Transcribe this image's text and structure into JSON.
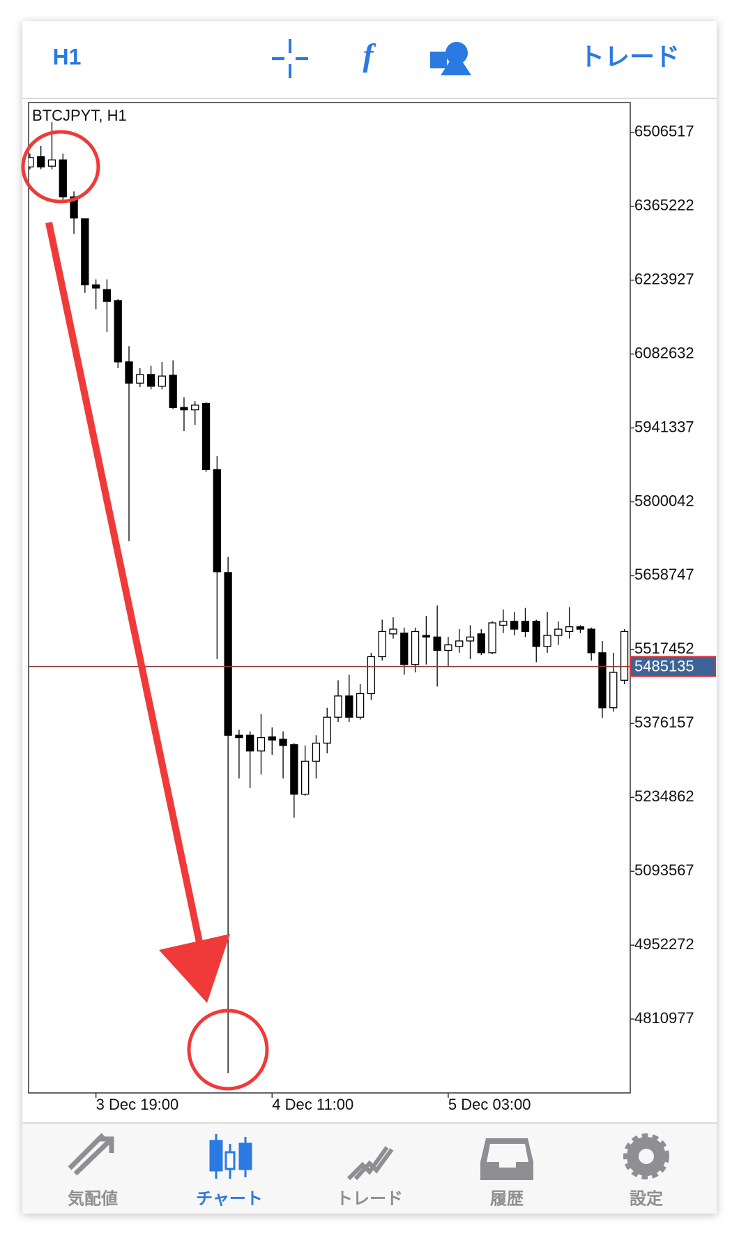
{
  "toolbar": {
    "timeframe": "H1",
    "function": "f",
    "trade": "トレード"
  },
  "chart_data": {
    "type": "candlestick",
    "title": "BTCJPYT, H1",
    "categories": [
      null,
      null,
      null,
      null,
      null,
      null,
      "3 Dec 19:00",
      null,
      null,
      null,
      null,
      null,
      null,
      null,
      null,
      null,
      null,
      null,
      null,
      null,
      null,
      null,
      "4 Dec 11:00",
      null,
      null,
      null,
      null,
      null,
      null,
      null,
      null,
      null,
      null,
      null,
      null,
      null,
      null,
      null,
      "5 Dec 03:00",
      null,
      null,
      null,
      null,
      null,
      null,
      null,
      null,
      null,
      null,
      null,
      null,
      null,
      null,
      null,
      null
    ],
    "open": [
      6440381,
      6459921,
      6441884,
      6453909,
      6383263,
      6341176,
      6214916,
      6205897,
      6184854,
      6067612,
      6027028,
      6043562,
      6021016,
      6042059,
      5980432,
      5975923,
      5987948,
      5861687,
      5664781,
      5353639,
      5353639,
      5323577,
      5350633,
      5346124,
      5335602,
      5240907,
      5304037,
      5338608,
      5388211,
      5428794,
      5388211,
      5433304,
      5503949,
      5547539,
      5549042,
      5488918,
      5544533,
      5541527,
      5515974,
      5523490,
      5534011,
      5547539,
      5511465,
      5564073,
      5571589,
      5571589,
      5571589,
      5523490,
      5544533,
      5552049,
      5561067,
      5556558,
      5511465,
      5406248,
      5458856
    ],
    "high": [
      6465933,
      6480964,
      6526058,
      6465933,
      6393785,
      6341176,
      6225437,
      6225437,
      6187860,
      6097674,
      6055587,
      6060096,
      6067612,
      6070618,
      5999972,
      5992457,
      5990954,
      5887240,
      5694843,
      5364161,
      5361155,
      5394223,
      5368670,
      5361155,
      5338608,
      5334099,
      5353639,
      5406248,
      5458856,
      5469378,
      5451341,
      5511465,
      5574595,
      5579104,
      5559564,
      5559564,
      5582111,
      5601651,
      5541527,
      5556558,
      5564073,
      5556558,
      5571589,
      5594135,
      5589626,
      5597142,
      5574595,
      5589626,
      5571589,
      5598645,
      5564073,
      5559564,
      5534011,
      5511465,
      5556558
    ],
    "low": [
      6435871,
      6435871,
      6435871,
      6371238,
      6312617,
      6199885,
      6168320,
      6124730,
      6055587,
      5724905,
      6019513,
      6015003,
      6015003,
      5977426,
      5935339,
      5947364,
      5857178,
      5499440,
      4707306,
      5270969,
      5252932,
      5278484,
      5316062,
      5270969,
      5195814,
      5237901,
      5270969,
      5319068,
      5379192,
      5379192,
      5383701,
      5421279,
      5496434,
      5538521,
      5469378,
      5473887,
      5488918,
      5446832,
      5484409,
      5511465,
      5499440,
      5506956,
      5508459,
      5549042,
      5544533,
      5541527,
      5493428,
      5511465,
      5526496,
      5538521,
      5549042,
      5496434,
      5386708,
      5398732,
      5451341
    ],
    "close": [
      6458418,
      6440381,
      6453909,
      6383263,
      6342679,
      6214916,
      6208903,
      6183351,
      6067612,
      6027028,
      6043562,
      6021016,
      6040556,
      5980432,
      5975923,
      5984941,
      5861687,
      5666284,
      5353639,
      5349130,
      5323577,
      5349130,
      5344621,
      5334099,
      5240907,
      5304037,
      5338608,
      5388211,
      5428794,
      5388211,
      5433304,
      5503949,
      5552049,
      5556558,
      5488918,
      5552049,
      5541527,
      5515974,
      5526496,
      5534011,
      5541527,
      5511465,
      5568583,
      5571589,
      5556558,
      5552049,
      5523490,
      5544533,
      5556558,
      5561067,
      5556558,
      5511465,
      5406248,
      5473887,
      5552049
    ],
    "up_color": "#ffffff",
    "down_color": "#000000",
    "ylim": [
      4669700,
      6563600
    ],
    "yticks": [
      6506517,
      6365222,
      6223927,
      6082632,
      5941337,
      5800042,
      5658747,
      5517452,
      5376157,
      5234862,
      5093567,
      4952272,
      4810977
    ],
    "current_price": 5485135,
    "current_price_color": "#8b3a3a"
  },
  "tabs": [
    "気配値",
    "チャート",
    "トレード",
    "履歴",
    "設定"
  ]
}
